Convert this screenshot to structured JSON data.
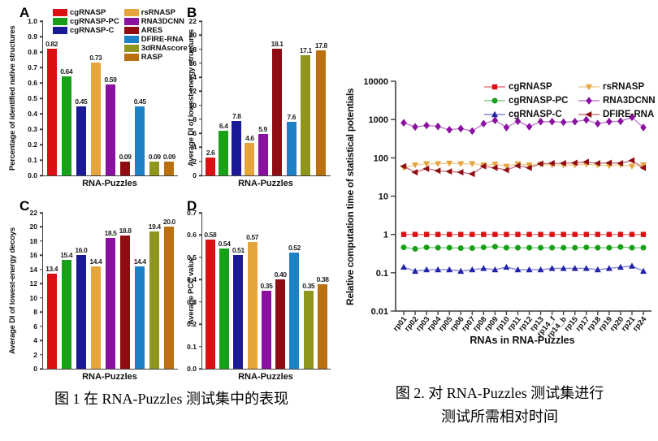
{
  "methods": [
    {
      "name": "cgRNASP",
      "color": "#dc1012"
    },
    {
      "name": "cgRNASP-PC",
      "color": "#18a018"
    },
    {
      "name": "cgRNASP-C",
      "color": "#1a1a96"
    },
    {
      "name": "rsRNASP",
      "color": "#e5a43c"
    },
    {
      "name": "RNA3DCNN",
      "color": "#8a10a0"
    },
    {
      "name": "ARES",
      "color": "#8e0c12"
    },
    {
      "name": "DFIRE-RNA",
      "color": "#1d82c5"
    },
    {
      "name": "3dRNAscore",
      "color": "#8f951d"
    },
    {
      "name": "RASP",
      "color": "#ba700f"
    }
  ],
  "captions": {
    "fig1": "图 1 在 RNA-Puzzles 测试集中的表现",
    "fig2_line1": "图 2. 对 RNA-Puzzles 测试集进行",
    "fig2_line2": "测试所需相对时间"
  },
  "chart_data": [
    {
      "panel": "A",
      "type": "bar",
      "title": "",
      "xlabel": "RNA-Puzzles",
      "ylabel": "Percentage of identified native structures",
      "ylim": [
        0,
        1.0
      ],
      "ytick_step": 0.1,
      "ydecimals": 1,
      "categories": [
        "cgRNASP",
        "cgRNASP-PC",
        "cgRNASP-C",
        "rsRNASP",
        "RNA3DCNN",
        "ARES",
        "DFIRE-RNA",
        "3dRNAscore",
        "RASP"
      ],
      "values": [
        0.82,
        0.64,
        0.45,
        0.73,
        0.59,
        0.09,
        0.45,
        0.09,
        0.09
      ],
      "labels": [
        "0.82",
        "0.64",
        "0.45",
        "0.73",
        "0.59",
        "0.09",
        "0.45",
        "0.09",
        "0.09"
      ],
      "legend_position": "top-inside"
    },
    {
      "panel": "B",
      "type": "bar",
      "title": "",
      "xlabel": "RNA-Puzzles",
      "ylabel": "Average DI of  lowest-energy structures",
      "ylim": [
        0,
        22
      ],
      "ytick_step": 2,
      "ydecimals": 0,
      "categories": [
        "cgRNASP",
        "cgRNASP-PC",
        "cgRNASP-C",
        "rsRNASP",
        "RNA3DCNN",
        "ARES",
        "DFIRE-RNA",
        "3dRNAscore",
        "RASP"
      ],
      "values": [
        2.6,
        6.4,
        7.8,
        4.6,
        5.9,
        18.1,
        7.6,
        17.1,
        17.8
      ],
      "labels": [
        "2.6",
        "6.4",
        "7.8",
        "4.6",
        "5.9",
        "18.1",
        "7.6",
        "17.1",
        "17.8"
      ]
    },
    {
      "panel": "C",
      "type": "bar",
      "title": "",
      "xlabel": "RNA-Puzzles",
      "ylabel": "Average DI of lowest-energy decoys",
      "ylim": [
        0,
        22
      ],
      "ytick_step": 2,
      "ydecimals": 0,
      "categories": [
        "cgRNASP",
        "cgRNASP-PC",
        "cgRNASP-C",
        "rsRNASP",
        "RNA3DCNN",
        "ARES",
        "DFIRE-RNA",
        "3dRNAscore",
        "RASP"
      ],
      "values": [
        13.4,
        15.4,
        16.0,
        14.4,
        18.5,
        18.8,
        14.4,
        19.4,
        20.0
      ],
      "labels": [
        "13.4",
        "15.4",
        "16.0",
        "14.4",
        "18.5",
        "18.8",
        "14.4",
        "19.4",
        "20.0"
      ]
    },
    {
      "panel": "D",
      "type": "bar",
      "title": "",
      "xlabel": "RNA-Puzzles",
      "ylabel": "Average PCC value",
      "ylim": [
        0,
        0.7
      ],
      "ytick_step": 0.1,
      "ydecimals": 1,
      "categories": [
        "cgRNASP",
        "cgRNASP-PC",
        "cgRNASP-C",
        "rsRNASP",
        "RNA3DCNN",
        "ARES",
        "DFIRE-RNA",
        "3dRNAscore",
        "RASP"
      ],
      "values": [
        0.58,
        0.54,
        0.51,
        0.57,
        0.35,
        0.4,
        0.52,
        0.35,
        0.38
      ],
      "labels": [
        "0.58",
        "0.54",
        "0.51",
        "0.57",
        "0.35",
        "0.40",
        "0.52",
        "0.35",
        "0.38"
      ]
    },
    {
      "panel": "fig2",
      "type": "line",
      "title": "",
      "xlabel": "RNAs in RNA-Puzzles",
      "ylabel": "Relative computation time of statistical potentials",
      "yscale": "log",
      "ylim": [
        0.01,
        10000
      ],
      "ytick_labels": [
        "0.01",
        "0.1",
        "1",
        "10",
        "100",
        "1000",
        "10000"
      ],
      "legend_position": "top-right-inside",
      "x": [
        "rp01",
        "rp02",
        "rp03",
        "rp04",
        "rp05",
        "rp06",
        "rp07",
        "rp08",
        "rp09",
        "rp10",
        "rp11",
        "rp12",
        "rp13",
        "rp14_f",
        "rp14_b",
        "rp15",
        "rp17",
        "rp18",
        "rp19",
        "rp20",
        "rp21",
        "rp24"
      ],
      "series": [
        {
          "name": "cgRNASP",
          "color": "#dc1012",
          "marker": "square",
          "values": [
            1,
            1,
            1,
            1,
            1,
            1,
            1,
            1,
            1,
            1,
            1,
            1,
            1,
            1,
            1,
            1,
            1,
            1,
            1,
            1,
            1,
            1
          ]
        },
        {
          "name": "cgRNASP-PC",
          "color": "#18a018",
          "marker": "circle",
          "values": [
            0.46,
            0.42,
            0.46,
            0.45,
            0.45,
            0.44,
            0.44,
            0.46,
            0.48,
            0.45,
            0.45,
            0.45,
            0.45,
            0.45,
            0.45,
            0.45,
            0.46,
            0.45,
            0.45,
            0.47,
            0.45,
            0.45
          ]
        },
        {
          "name": "cgRNASP-C",
          "color": "#2323aa",
          "marker": "triangle-up",
          "values": [
            0.14,
            0.11,
            0.12,
            0.12,
            0.12,
            0.11,
            0.12,
            0.13,
            0.12,
            0.14,
            0.12,
            0.12,
            0.12,
            0.13,
            0.13,
            0.13,
            0.13,
            0.12,
            0.13,
            0.14,
            0.15,
            0.11
          ]
        },
        {
          "name": "rsRNASP",
          "color": "#e5a43c",
          "marker": "triangle-down",
          "values": [
            55,
            65,
            70,
            70,
            72,
            70,
            70,
            65,
            68,
            60,
            70,
            65,
            68,
            65,
            65,
            65,
            68,
            65,
            62,
            65,
            60,
            65
          ]
        },
        {
          "name": "RNA3DCNN",
          "color": "#8a10a0",
          "marker": "diamond",
          "values": [
            820,
            640,
            700,
            660,
            540,
            580,
            500,
            780,
            950,
            620,
            900,
            650,
            880,
            880,
            850,
            880,
            980,
            780,
            880,
            900,
            1150,
            620
          ]
        },
        {
          "name": "DFIRE-RNA",
          "color": "#8e0c12",
          "marker": "triangle-left",
          "values": [
            60,
            42,
            52,
            46,
            44,
            42,
            38,
            60,
            55,
            48,
            62,
            55,
            70,
            72,
            72,
            74,
            78,
            72,
            74,
            72,
            85,
            55
          ]
        }
      ]
    }
  ]
}
